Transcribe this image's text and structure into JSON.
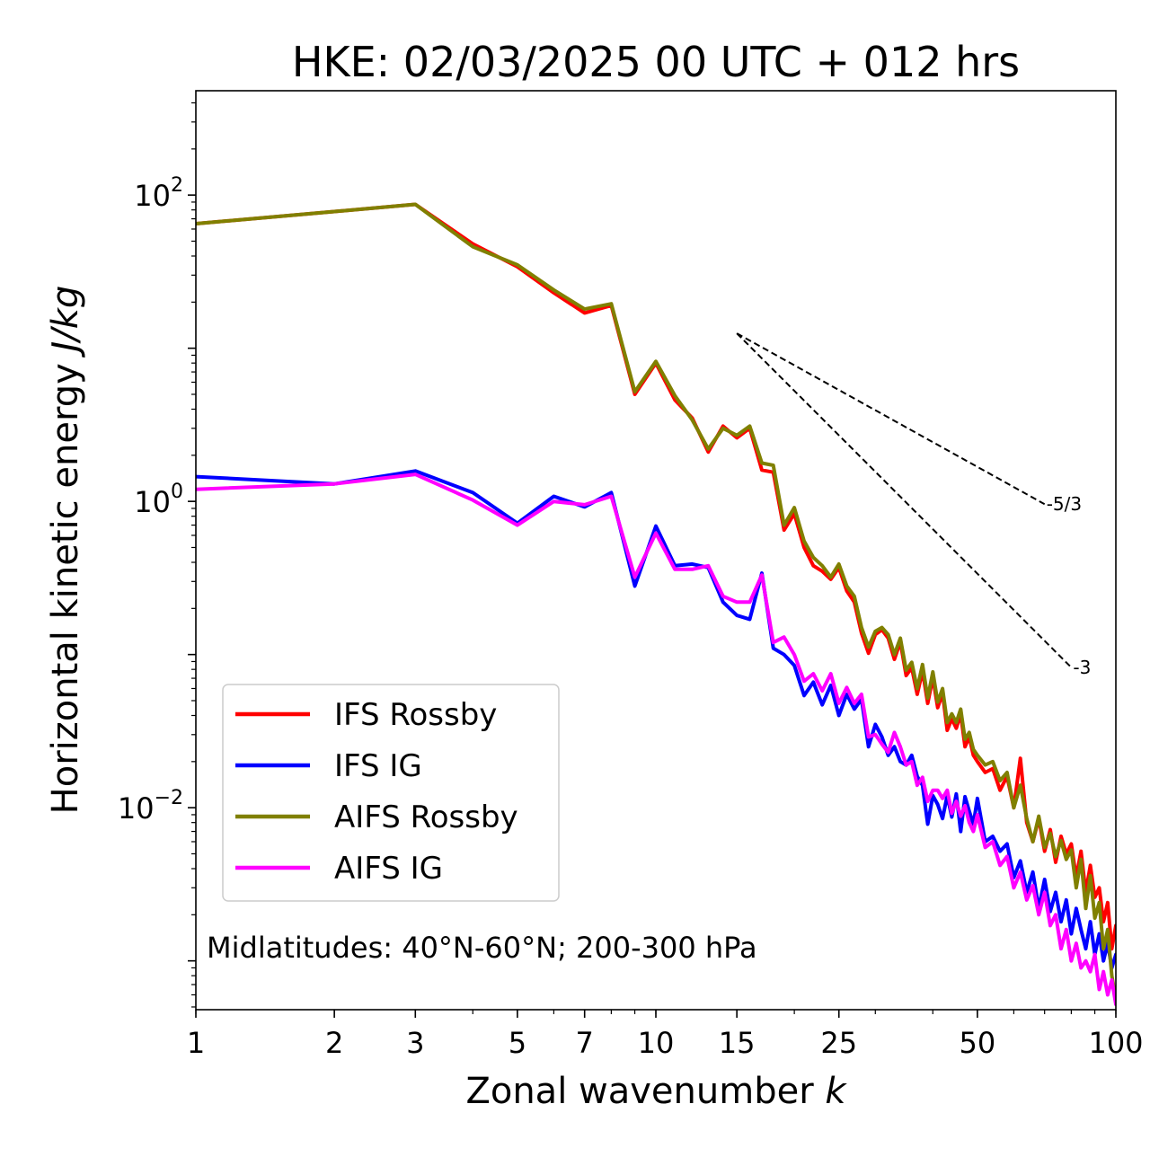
{
  "chart_data": {
    "type": "line",
    "title": "HKE: 02/03/2025 00 UTC + 012 hrs",
    "xlabel": "Zonal wavenumber",
    "xlabel_symbol": "k",
    "ylabel": "Horizontal kinetic energy",
    "ylabel_units": "J/kg",
    "x_scale": "log",
    "y_scale": "log",
    "xlim": [
      1,
      100
    ],
    "ylim": [
      0.00048,
      480
    ],
    "x_ticks": [
      {
        "value": 1,
        "label": "1"
      },
      {
        "value": 2,
        "label": "2"
      },
      {
        "value": 3,
        "label": "3"
      },
      {
        "value": 5,
        "label": "5"
      },
      {
        "value": 7,
        "label": "7"
      },
      {
        "value": 10,
        "label": "10"
      },
      {
        "value": 15,
        "label": "15"
      },
      {
        "value": 25,
        "label": "25"
      },
      {
        "value": 50,
        "label": "50"
      },
      {
        "value": 100,
        "label": "100"
      }
    ],
    "y_ticks": [
      {
        "value": 0.01,
        "base": "10",
        "exp": "−2"
      },
      {
        "value": 1,
        "base": "10",
        "exp": "0"
      },
      {
        "value": 100,
        "base": "10",
        "exp": "2"
      }
    ],
    "grid": false,
    "legend_position": "lower-left",
    "annotation": "Midlatitudes: 40°N-60°N; 200-300 hPa",
    "reference_slopes": [
      {
        "label": "-5/3",
        "slope": -1.6667,
        "x_start": 15,
        "x_end": 70,
        "y_start": 12.5
      },
      {
        "label": "-3",
        "slope": -3,
        "x_start": 15,
        "x_end": 80,
        "y_start": 12.5
      }
    ],
    "series": [
      {
        "name": "IFS Rossby",
        "color": "#ff0000",
        "x": [
          1,
          2,
          3,
          4,
          5,
          6,
          7,
          8,
          9,
          10,
          11,
          12,
          13,
          14,
          15,
          16,
          17,
          18,
          19,
          20,
          21,
          22,
          23,
          24,
          25,
          26,
          27,
          28,
          29,
          30,
          31,
          32,
          33,
          34,
          35,
          36,
          37,
          38,
          39,
          40,
          41,
          42,
          43,
          44,
          45,
          46,
          47,
          48,
          49,
          50,
          52,
          54,
          56,
          58,
          60,
          62,
          64,
          66,
          68,
          70,
          72,
          74,
          76,
          78,
          80,
          82,
          84,
          86,
          88,
          90,
          92,
          94,
          96,
          98,
          100
        ],
        "y": [
          65,
          78,
          87,
          48,
          34,
          23,
          17,
          19,
          5.0,
          8.0,
          4.6,
          3.5,
          2.1,
          3.1,
          2.6,
          3.0,
          1.6,
          1.55,
          0.65,
          0.83,
          0.5,
          0.38,
          0.35,
          0.31,
          0.37,
          0.26,
          0.22,
          0.138,
          0.102,
          0.135,
          0.145,
          0.128,
          0.093,
          0.121,
          0.073,
          0.082,
          0.055,
          0.078,
          0.048,
          0.071,
          0.045,
          0.056,
          0.032,
          0.038,
          0.033,
          0.041,
          0.025,
          0.029,
          0.022,
          0.02,
          0.017,
          0.018,
          0.013,
          0.016,
          0.01,
          0.021,
          0.008,
          0.006,
          0.0085,
          0.0052,
          0.0072,
          0.0044,
          0.0065,
          0.005,
          0.0058,
          0.0035,
          0.0052,
          0.0028,
          0.0042,
          0.0026,
          0.003,
          0.0018,
          0.0024,
          0.0012,
          0.0017
        ]
      },
      {
        "name": "IFS IG",
        "color": "#0000ff",
        "x": [
          1,
          2,
          3,
          4,
          5,
          6,
          7,
          8,
          9,
          10,
          11,
          12,
          13,
          14,
          15,
          16,
          17,
          18,
          19,
          20,
          21,
          22,
          23,
          24,
          25,
          26,
          27,
          28,
          29,
          30,
          31,
          32,
          33,
          34,
          35,
          36,
          37,
          38,
          39,
          40,
          41,
          42,
          43,
          44,
          45,
          46,
          47,
          48,
          49,
          50,
          52,
          54,
          56,
          58,
          60,
          62,
          64,
          66,
          68,
          70,
          72,
          74,
          76,
          78,
          80,
          82,
          84,
          86,
          88,
          90,
          92,
          94,
          96,
          98,
          100
        ],
        "y": [
          1.45,
          1.3,
          1.58,
          1.14,
          0.72,
          1.08,
          0.92,
          1.14,
          0.28,
          0.69,
          0.38,
          0.39,
          0.37,
          0.22,
          0.18,
          0.17,
          0.34,
          0.11,
          0.1,
          0.085,
          0.054,
          0.066,
          0.047,
          0.063,
          0.04,
          0.055,
          0.044,
          0.051,
          0.025,
          0.035,
          0.029,
          0.022,
          0.025,
          0.02,
          0.019,
          0.022,
          0.016,
          0.014,
          0.0078,
          0.012,
          0.0105,
          0.0085,
          0.012,
          0.0087,
          0.0123,
          0.007,
          0.0118,
          0.0095,
          0.0078,
          0.0115,
          0.006,
          0.0065,
          0.0052,
          0.0058,
          0.0035,
          0.0045,
          0.0028,
          0.0038,
          0.0022,
          0.0034,
          0.0021,
          0.0028,
          0.0018,
          0.0025,
          0.0015,
          0.0022,
          0.0016,
          0.0012,
          0.0018,
          0.0011,
          0.0015,
          0.001,
          0.0013,
          0.0009,
          0.0011
        ]
      },
      {
        "name": "AIFS Rossby",
        "color": "#808000",
        "x": [
          1,
          2,
          3,
          4,
          5,
          6,
          7,
          8,
          9,
          10,
          11,
          12,
          13,
          14,
          15,
          16,
          17,
          18,
          19,
          20,
          21,
          22,
          23,
          24,
          25,
          26,
          27,
          28,
          29,
          30,
          31,
          32,
          33,
          34,
          35,
          36,
          37,
          38,
          39,
          40,
          41,
          42,
          43,
          44,
          45,
          46,
          47,
          48,
          49,
          50,
          52,
          54,
          56,
          58,
          60,
          62,
          64,
          66,
          68,
          70,
          72,
          74,
          76,
          78,
          80,
          82,
          84,
          86,
          88,
          90,
          92,
          94,
          96,
          98,
          100
        ],
        "y": [
          65,
          78,
          87,
          46,
          35,
          24,
          18,
          19.5,
          5.2,
          8.2,
          4.9,
          3.4,
          2.2,
          3.0,
          2.7,
          3.1,
          1.78,
          1.72,
          0.7,
          0.91,
          0.55,
          0.43,
          0.38,
          0.32,
          0.39,
          0.28,
          0.24,
          0.15,
          0.112,
          0.142,
          0.15,
          0.135,
          0.1,
          0.128,
          0.079,
          0.089,
          0.06,
          0.086,
          0.052,
          0.077,
          0.049,
          0.06,
          0.036,
          0.041,
          0.036,
          0.044,
          0.028,
          0.031,
          0.024,
          0.022,
          0.019,
          0.02,
          0.015,
          0.017,
          0.01,
          0.014,
          0.0085,
          0.006,
          0.0088,
          0.0055,
          0.0068,
          0.0048,
          0.0061,
          0.0046,
          0.0053,
          0.003,
          0.0046,
          0.0022,
          0.0036,
          0.0019,
          0.0024,
          0.0012,
          0.0016,
          0.0008,
          0.00056
        ]
      },
      {
        "name": "AIFS IG",
        "color": "#ff00ff",
        "x": [
          1,
          2,
          3,
          4,
          5,
          6,
          7,
          8,
          9,
          10,
          11,
          12,
          13,
          14,
          15,
          16,
          17,
          18,
          19,
          20,
          21,
          22,
          23,
          24,
          25,
          26,
          27,
          28,
          29,
          30,
          31,
          32,
          33,
          34,
          35,
          36,
          37,
          38,
          39,
          40,
          41,
          42,
          43,
          44,
          45,
          46,
          47,
          48,
          49,
          50,
          52,
          54,
          56,
          58,
          60,
          62,
          64,
          66,
          68,
          70,
          72,
          74,
          76,
          78,
          80,
          82,
          84,
          86,
          88,
          90,
          92,
          94,
          96,
          98,
          100
        ],
        "y": [
          1.2,
          1.3,
          1.5,
          1.02,
          0.7,
          1.0,
          0.95,
          1.08,
          0.32,
          0.62,
          0.36,
          0.36,
          0.38,
          0.24,
          0.22,
          0.22,
          0.33,
          0.12,
          0.13,
          0.1,
          0.067,
          0.075,
          0.058,
          0.075,
          0.048,
          0.061,
          0.048,
          0.055,
          0.029,
          0.03,
          0.026,
          0.023,
          0.031,
          0.025,
          0.019,
          0.02,
          0.014,
          0.0158,
          0.011,
          0.013,
          0.013,
          0.0115,
          0.013,
          0.0092,
          0.011,
          0.0088,
          0.0103,
          0.008,
          0.007,
          0.009,
          0.0055,
          0.006,
          0.0042,
          0.0048,
          0.003,
          0.0038,
          0.0025,
          0.0031,
          0.002,
          0.0028,
          0.0017,
          0.002,
          0.0012,
          0.0016,
          0.001,
          0.0013,
          0.0009,
          0.001,
          0.00085,
          0.0011,
          0.00065,
          0.00085,
          0.0006,
          0.00075,
          0.00052
        ]
      }
    ]
  }
}
